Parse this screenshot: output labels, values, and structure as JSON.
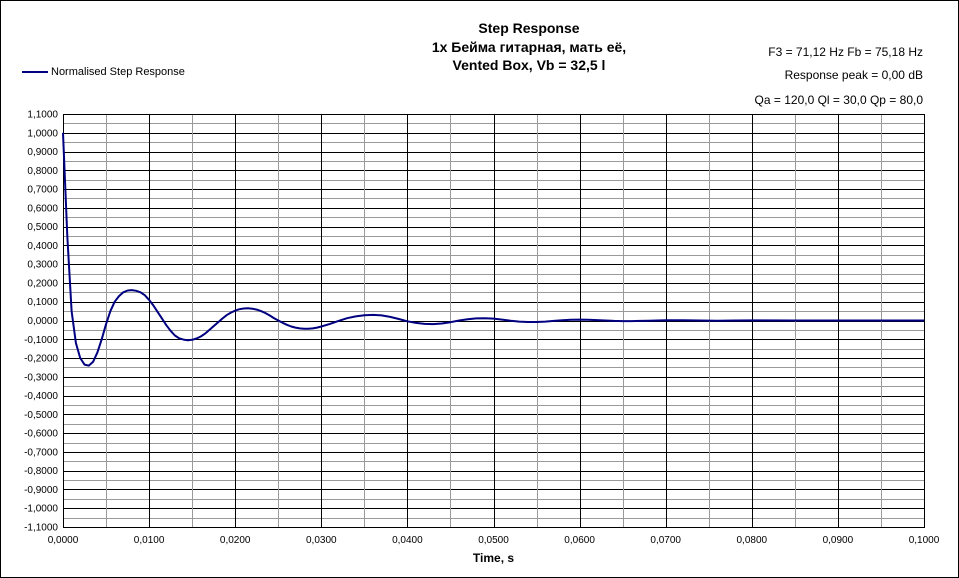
{
  "chart_data": {
    "type": "line",
    "title_lines": [
      "Step Response",
      "1x Бейма гитарная, мать её,",
      "Vented Box, Vb = 32,5 l"
    ],
    "xlabel": "Time, s",
    "ylabel": "",
    "xlim": [
      0,
      0.1
    ],
    "ylim": [
      -1.1,
      1.1
    ],
    "x_ticks": [
      "0,0000",
      "0,0100",
      "0,0200",
      "0,0300",
      "0,0400",
      "0,0500",
      "0,0600",
      "0,0700",
      "0,0800",
      "0,0900",
      "0,1000"
    ],
    "y_ticks": [
      "1,1000",
      "1,0000",
      "0,9000",
      "0,8000",
      "0,7000",
      "0,6000",
      "0,5000",
      "0,4000",
      "0,3000",
      "0,2000",
      "0,1000",
      "0,0000",
      "-0,1000",
      "-0,2000",
      "-0,3000",
      "-0,4000",
      "-0,5000",
      "-0,6000",
      "-0,7000",
      "-0,8000",
      "-0,9000",
      "-1,0000",
      "-1,1000"
    ],
    "grid": true,
    "legend_position": "top-left",
    "info_lines": [
      "F3 = 71,12 Hz   Fb = 75,18 Hz",
      "Response peak = 0,00 dB",
      "Qa = 120,0   Ql = 30,0   Qp = 80,0"
    ],
    "series": [
      {
        "name": "Normalised Step Response",
        "color": "#000080",
        "x": [
          0.0,
          0.0005,
          0.001,
          0.0015,
          0.002,
          0.0025,
          0.003,
          0.0035,
          0.004,
          0.0045,
          0.005,
          0.0055,
          0.006,
          0.0065,
          0.007,
          0.0075,
          0.008,
          0.0085,
          0.009,
          0.0095,
          0.01,
          0.0105,
          0.011,
          0.0115,
          0.012,
          0.0125,
          0.013,
          0.0135,
          0.014,
          0.0145,
          0.015,
          0.0155,
          0.016,
          0.0165,
          0.017,
          0.0175,
          0.018,
          0.0185,
          0.019,
          0.0195,
          0.02,
          0.0205,
          0.021,
          0.0215,
          0.022,
          0.0225,
          0.023,
          0.0235,
          0.024,
          0.0245,
          0.025,
          0.0255,
          0.026,
          0.0265,
          0.027,
          0.0275,
          0.028,
          0.0285,
          0.029,
          0.0295,
          0.03,
          0.031,
          0.032,
          0.033,
          0.034,
          0.035,
          0.036,
          0.037,
          0.038,
          0.039,
          0.04,
          0.041,
          0.042,
          0.043,
          0.044,
          0.045,
          0.046,
          0.047,
          0.048,
          0.049,
          0.05,
          0.051,
          0.052,
          0.053,
          0.054,
          0.055,
          0.056,
          0.057,
          0.058,
          0.059,
          0.06,
          0.061,
          0.062,
          0.063,
          0.064,
          0.065,
          0.066,
          0.067,
          0.068,
          0.069,
          0.07,
          0.072,
          0.074,
          0.076,
          0.078,
          0.08,
          0.085,
          0.09,
          0.095,
          0.1
        ],
        "y": [
          1.0,
          0.45,
          0.05,
          -0.12,
          -0.2,
          -0.235,
          -0.24,
          -0.22,
          -0.17,
          -0.1,
          -0.02,
          0.05,
          0.1,
          0.13,
          0.15,
          0.16,
          0.162,
          0.158,
          0.15,
          0.135,
          0.11,
          0.08,
          0.045,
          0.01,
          -0.025,
          -0.055,
          -0.08,
          -0.095,
          -0.102,
          -0.105,
          -0.103,
          -0.096,
          -0.085,
          -0.07,
          -0.05,
          -0.03,
          -0.01,
          0.01,
          0.028,
          0.042,
          0.053,
          0.06,
          0.064,
          0.065,
          0.063,
          0.058,
          0.05,
          0.04,
          0.027,
          0.013,
          0.0,
          -0.012,
          -0.023,
          -0.032,
          -0.038,
          -0.042,
          -0.044,
          -0.044,
          -0.042,
          -0.038,
          -0.032,
          -0.018,
          -0.002,
          0.012,
          0.022,
          0.028,
          0.03,
          0.027,
          0.019,
          0.008,
          -0.004,
          -0.013,
          -0.018,
          -0.019,
          -0.016,
          -0.009,
          0.0,
          0.007,
          0.011,
          0.012,
          0.01,
          0.005,
          -0.001,
          -0.006,
          -0.008,
          -0.008,
          -0.006,
          -0.002,
          0.001,
          0.004,
          0.005,
          0.004,
          0.002,
          0.0,
          -0.002,
          -0.003,
          -0.003,
          -0.002,
          -0.001,
          0.0,
          0.001,
          0.001,
          0.0,
          -0.001,
          0.0,
          0.0005,
          0.0,
          0.0,
          0.0,
          0.0
        ]
      }
    ]
  }
}
